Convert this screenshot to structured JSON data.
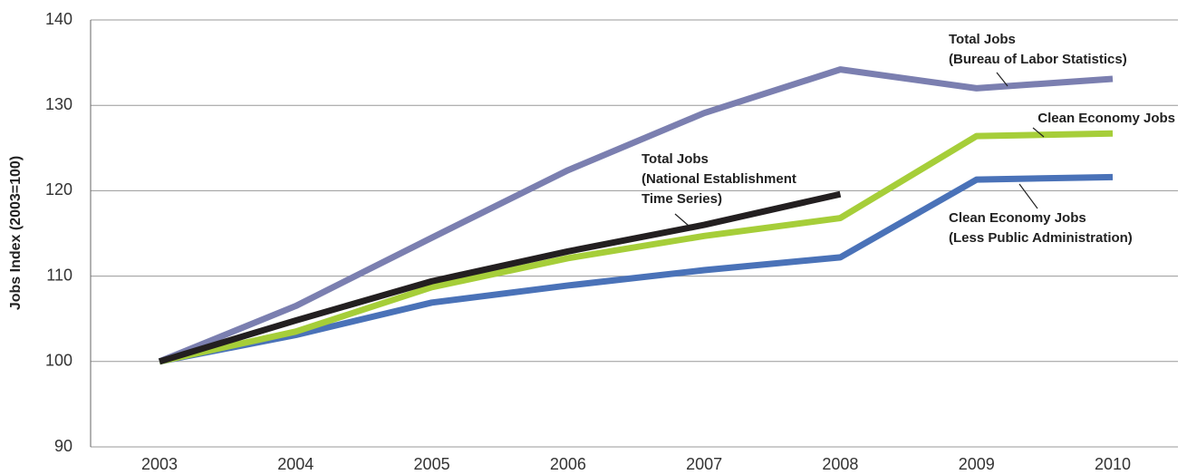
{
  "chart_data": {
    "type": "line",
    "ylabel": "Jobs Index (2003=100)",
    "categories": [
      "2003",
      "2004",
      "2005",
      "2006",
      "2007",
      "2008",
      "2009",
      "2010"
    ],
    "ylim": [
      90,
      140
    ],
    "yticks": [
      90,
      100,
      110,
      120,
      130,
      140
    ],
    "grid": true,
    "series": [
      {
        "name": "Total Jobs\n(Bureau of Labor Statistics)",
        "color": "#7b7fb0",
        "values": [
          100,
          106.5,
          114.5,
          122.4,
          129.1,
          134.2,
          132.0,
          133.1
        ]
      },
      {
        "name": "Clean Economy Jobs",
        "color": "#a6ce39",
        "values": [
          100,
          103.5,
          108.7,
          112.1,
          114.7,
          116.8,
          126.4,
          126.7
        ]
      },
      {
        "name": "Clean Economy Jobs\n(Less Public Administration)",
        "color": "#4a72b8",
        "values": [
          100,
          103.1,
          106.9,
          108.9,
          110.7,
          112.2,
          121.3,
          121.6
        ]
      },
      {
        "name": "Total Jobs\n(National Establishment\nTime Series)",
        "color": "#231f20",
        "values": [
          100,
          104.8,
          109.4,
          112.9,
          116.0,
          119.6,
          null,
          null
        ]
      }
    ]
  }
}
